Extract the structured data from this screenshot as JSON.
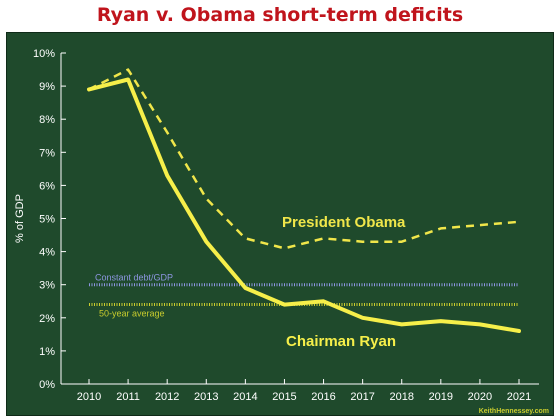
{
  "title": "Ryan v. Obama short-term deficits",
  "colors": {
    "background": "#1f4a2c",
    "title": "#c0141c",
    "ryan": "#f6ef4a",
    "obama": "#f0e64a",
    "constant_debt": "#8d96e0",
    "fifty_year": "#c9cc2e",
    "axis_text": "#ffffff"
  },
  "chart_data": {
    "type": "line",
    "ylabel": "% of GDP",
    "xlabel": "",
    "x": [
      2010,
      2011,
      2012,
      2013,
      2014,
      2015,
      2016,
      2017,
      2018,
      2019,
      2020,
      2021
    ],
    "ylim": [
      0,
      10
    ],
    "yticks": [
      "0%",
      "1%",
      "2%",
      "3%",
      "4%",
      "5%",
      "6%",
      "7%",
      "8%",
      "9%",
      "10%"
    ],
    "series": [
      {
        "name": "President Obama",
        "style": "dashed",
        "values": [
          8.9,
          9.5,
          7.6,
          5.6,
          4.4,
          4.1,
          4.4,
          4.3,
          4.3,
          4.7,
          4.8,
          4.9
        ]
      },
      {
        "name": "Chairman Ryan",
        "style": "solid",
        "values": [
          8.9,
          9.2,
          6.3,
          4.3,
          2.9,
          2.4,
          2.5,
          2.0,
          1.8,
          1.9,
          1.8,
          1.6
        ]
      }
    ],
    "reference_lines": [
      {
        "label": "Constant debt/GDP",
        "value": 3.0
      },
      {
        "label": "50-year average",
        "value": 2.4
      }
    ],
    "grid": false,
    "source": "KeithHennessey.com"
  }
}
